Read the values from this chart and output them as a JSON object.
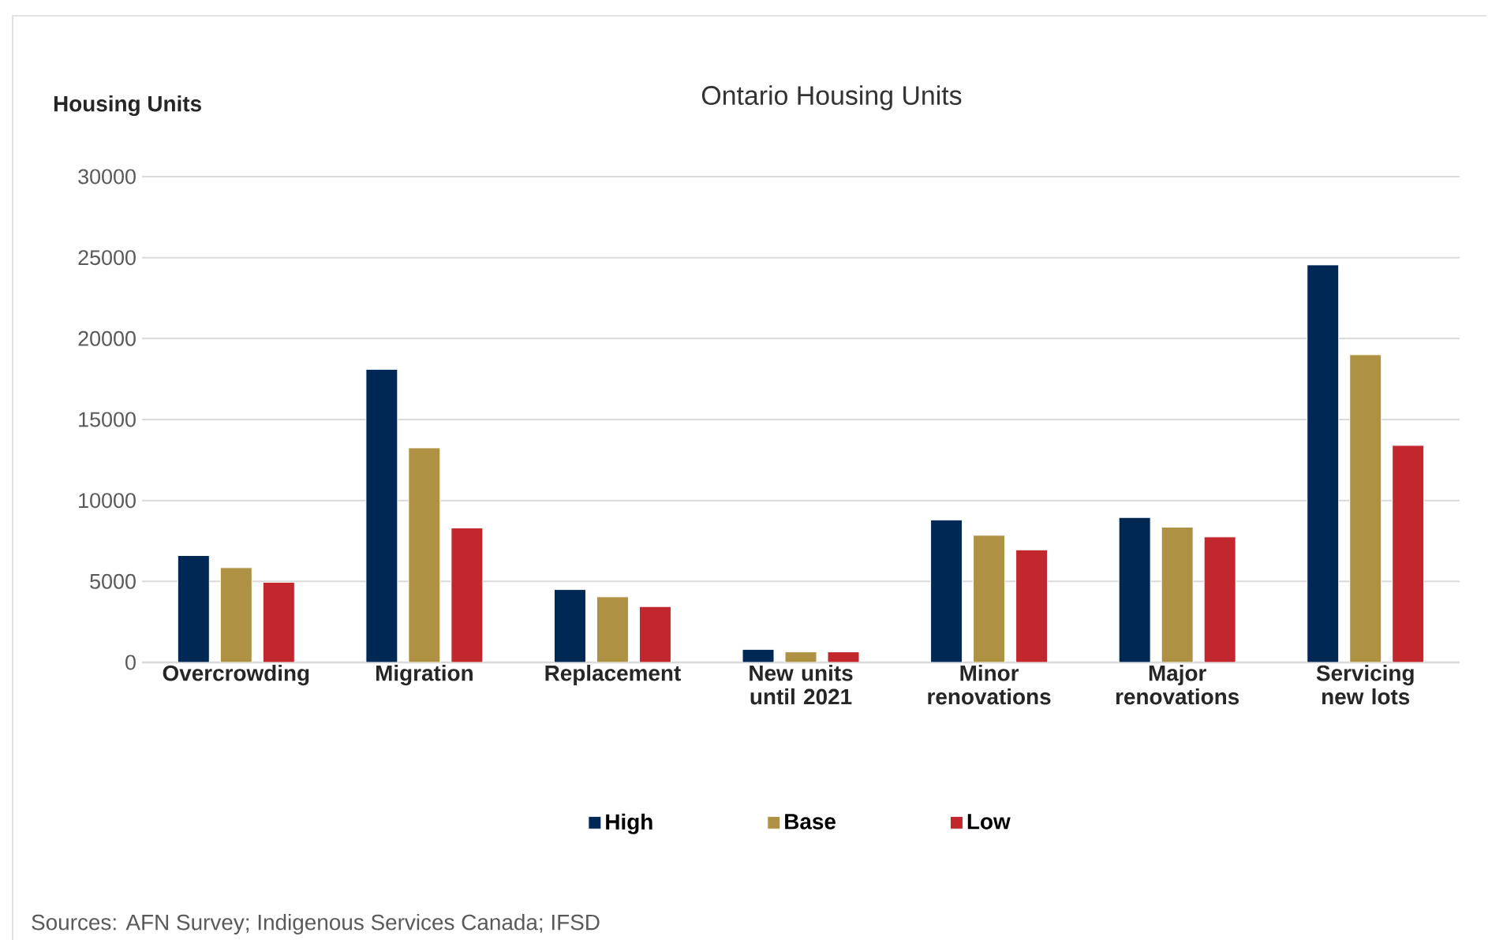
{
  "chart_data": {
    "type": "bar",
    "title": "Ontario Housing Units",
    "ylabel": "Housing Units",
    "categories": [
      "Overcrowding",
      "Migration",
      "Replacement",
      "New units until 2021",
      "Minor renovations",
      "Major renovations",
      "Servicing new lots"
    ],
    "series": [
      {
        "name": "High",
        "color": "#002855",
        "values": [
          6600,
          18100,
          4500,
          800,
          8800,
          8950,
          24550
        ]
      },
      {
        "name": "Base",
        "color": "#ae9142",
        "values": [
          5850,
          13250,
          4050,
          650,
          7850,
          8350,
          19000
        ]
      },
      {
        "name": "Low",
        "color": "#c1272d",
        "values": [
          4950,
          8300,
          3450,
          650,
          6950,
          7750,
          13400
        ]
      }
    ],
    "ylim": [
      0,
      30000
    ],
    "yticks": [
      0,
      5000,
      10000,
      15000,
      20000,
      25000,
      30000
    ],
    "grid": "y",
    "legend": "bottom",
    "annotations": [
      "Sources: AFN Survey; Indigenous Services Canada; IFSD"
    ]
  }
}
